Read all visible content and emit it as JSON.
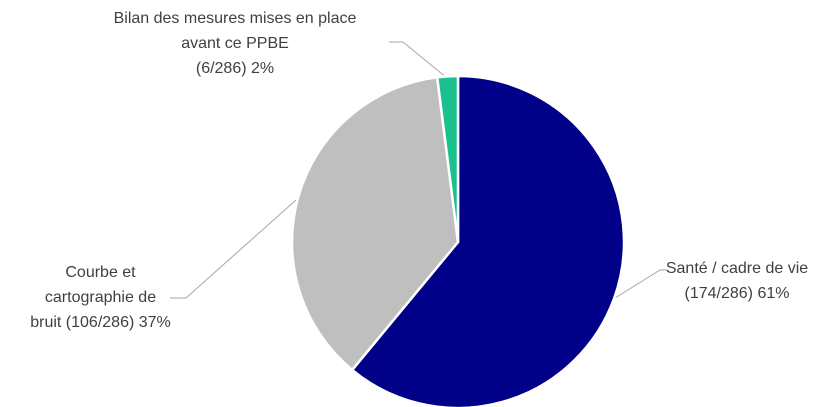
{
  "chart_data": {
    "type": "pie",
    "categories": [
      "Santé / cadre de vie",
      "Courbe et cartographie de bruit",
      "Bilan des mesures mises en place avant ce PPBE"
    ],
    "values": [
      61,
      37,
      2
    ],
    "value_labels": [
      "(174/286) 61%",
      "(106/286) 37%",
      "(6/286) 2%"
    ],
    "colors": [
      "#000088",
      "#bfbfbf",
      "#1cc08f"
    ]
  }
}
